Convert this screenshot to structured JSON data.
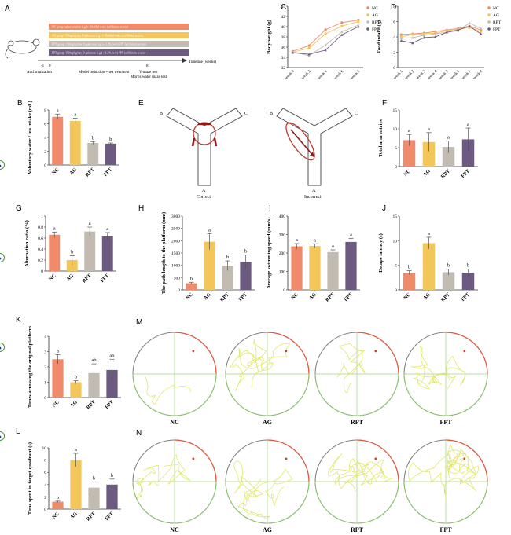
{
  "colors": {
    "NC": "#ef8a6b",
    "AG": "#f2c65a",
    "RPT": "#c2bbb1",
    "FPT": "#6d5a80",
    "text": "#222222",
    "track": "#dfe86a",
    "pool": "#7b7b7b",
    "platform": "#3a8f3a",
    "quadrantMark": "#d9342b"
  },
  "groups": [
    "NC",
    "AG",
    "RPT",
    "FPT"
  ],
  "panelA": {
    "letter": "A",
    "bars": [
      {
        "text": "NC group: saline solution (i.g.)+ Distilled water (ad libitum access)",
        "color": "#ef8a6b"
      },
      {
        "text": "AG group: 150mg/kg/day D-galactose (i.g.) + Distilled water (ad libitum access)",
        "color": "#f2c65a"
      },
      {
        "text": "RPT group: 150mg/kg/day D-galactose (i.g.) + 1.3% (w/v) RPT (ad libitum access)",
        "color": "#c2bbb1"
      },
      {
        "text": "FPT group: 150mg/kg/day D-galactose (i.g.) + 1.3% (w/v) FPT (ad libitum access)",
        "color": "#6d5a80"
      }
    ],
    "timeline": "Timeline (weeks)",
    "ticks": [
      "-1",
      "0",
      "8"
    ],
    "phases": [
      "Acclimatization",
      "Model induction + tea treatment",
      "Y-maze test",
      "Morris water maze test"
    ]
  },
  "chart_data": [
    {
      "id": "C",
      "type": "line",
      "ylabel": "Body weight (g)",
      "categories": [
        "week 0",
        "week 2",
        "week 4",
        "week 6",
        "week 8"
      ],
      "ylim": [
        32,
        44
      ],
      "yticks": [
        32,
        34,
        36,
        38,
        40,
        42,
        44
      ],
      "series": [
        {
          "name": "NC",
          "values": [
            35.2,
            36.3,
            39.4,
            40.8,
            41.3
          ]
        },
        {
          "name": "AG",
          "values": [
            35.0,
            35.8,
            38.6,
            40.1,
            41.0
          ]
        },
        {
          "name": "RPT",
          "values": [
            35.1,
            34.3,
            36.4,
            39.0,
            40.3
          ]
        },
        {
          "name": "FPT",
          "values": [
            34.9,
            34.6,
            35.4,
            38.4,
            40.0
          ]
        }
      ]
    },
    {
      "id": "D",
      "type": "line",
      "ylabel": "Food intake (g)",
      "categories": [
        "week 1",
        "week 2",
        "week 3",
        "week 4",
        "week 5",
        "week 6",
        "week 7",
        "week 8"
      ],
      "ylim": [
        0,
        8
      ],
      "yticks": [
        0,
        2,
        4,
        6,
        8
      ],
      "series": [
        {
          "name": "NC",
          "values": [
            4.3,
            4.4,
            4.5,
            4.7,
            4.9,
            5.1,
            5.4,
            4.9
          ]
        },
        {
          "name": "AG",
          "values": [
            4.0,
            4.3,
            4.4,
            4.5,
            4.8,
            5.0,
            5.2,
            4.7
          ]
        },
        {
          "name": "RPT",
          "values": [
            3.8,
            3.9,
            4.2,
            4.4,
            4.6,
            4.8,
            5.8,
            5.1
          ]
        },
        {
          "name": "FPT",
          "values": [
            3.5,
            3.2,
            3.9,
            4.0,
            4.6,
            4.9,
            5.4,
            4.4
          ]
        }
      ]
    },
    {
      "id": "B",
      "type": "bar",
      "ylabel": "Voluntary water / tea intake (mL)",
      "categories": [
        "NC",
        "AG",
        "RPT",
        "FPT"
      ],
      "ylim": [
        0,
        8
      ],
      "yticks": [
        0,
        2,
        4,
        6,
        8
      ],
      "values": [
        7.0,
        6.4,
        3.2,
        3.1
      ],
      "errors": [
        0.4,
        0.4,
        0.2,
        0.1
      ],
      "letters": [
        "a",
        "a",
        "b",
        "b"
      ]
    },
    {
      "id": "F",
      "type": "bar",
      "ylabel": "Total arm entries",
      "categories": [
        "NC",
        "AG",
        "RPT",
        "FPT"
      ],
      "ylim": [
        0,
        15
      ],
      "yticks": [
        0,
        5,
        10,
        15
      ],
      "values": [
        7.0,
        6.5,
        5.2,
        7.2
      ],
      "errors": [
        1.5,
        2.5,
        1.6,
        3.0
      ],
      "letters": [
        "a",
        "a",
        "a",
        "a"
      ]
    },
    {
      "id": "G",
      "type": "bar",
      "ylabel": "Alternation ratio (%)",
      "categories": [
        "NC",
        "AG",
        "RPT",
        "FPT"
      ],
      "ylim": [
        0,
        1.0
      ],
      "yticks": [
        0.0,
        0.2,
        0.4,
        0.6,
        0.8,
        1.0
      ],
      "values": [
        0.66,
        0.2,
        0.72,
        0.63
      ],
      "errors": [
        0.05,
        0.08,
        0.08,
        0.07
      ],
      "letters": [
        "a",
        "b",
        "a",
        "a"
      ]
    },
    {
      "id": "H",
      "type": "bar",
      "ylabel": "The path length to the platform (mm)",
      "categories": [
        "NC",
        "AG",
        "RPT",
        "FPT"
      ],
      "ylim": [
        0,
        3000
      ],
      "yticks": [
        0,
        500,
        1000,
        1500,
        2000,
        2500,
        3000
      ],
      "values": [
        270,
        1960,
        980,
        1140
      ],
      "errors": [
        40,
        320,
        200,
        280
      ],
      "letters": [
        "b",
        "a",
        "b",
        "b"
      ]
    },
    {
      "id": "I",
      "type": "bar",
      "ylabel": "Average swimming speed (mm/s)",
      "categories": [
        "NC",
        "AG",
        "RPT",
        "FPT"
      ],
      "ylim": [
        0,
        400
      ],
      "yticks": [
        0,
        100,
        200,
        300,
        400
      ],
      "values": [
        236,
        238,
        205,
        260
      ],
      "errors": [
        15,
        12,
        12,
        18
      ],
      "letters": [
        "a",
        "a",
        "a",
        "a"
      ]
    },
    {
      "id": "J",
      "type": "bar",
      "ylabel": "Escape latency (s)",
      "categories": [
        "NC",
        "AG",
        "RPT",
        "FPT"
      ],
      "ylim": [
        0,
        15
      ],
      "yticks": [
        0,
        5,
        10,
        15
      ],
      "values": [
        3.5,
        9.5,
        3.6,
        3.5
      ],
      "errors": [
        0.4,
        1.2,
        0.6,
        0.7
      ],
      "letters": [
        "b",
        "a",
        "b",
        "b"
      ]
    },
    {
      "id": "K",
      "type": "bar",
      "ylabel": "Times arrossing the original platform",
      "categories": [
        "NC",
        "AG",
        "RPT",
        "FPT"
      ],
      "ylim": [
        0,
        4
      ],
      "yticks": [
        0,
        1,
        2,
        3,
        4
      ],
      "values": [
        2.5,
        1.0,
        1.6,
        1.8
      ],
      "errors": [
        0.3,
        0.1,
        0.6,
        0.7
      ],
      "letters": [
        "a",
        "b",
        "ab",
        "ab"
      ]
    },
    {
      "id": "L",
      "type": "bar",
      "ylabel": "Time spent in target quadrant (s)",
      "categories": [
        "NC",
        "AG",
        "RPT",
        "FPT"
      ],
      "ylim": [
        0,
        10
      ],
      "yticks": [
        0,
        2,
        4,
        6,
        8,
        10
      ],
      "values": [
        1.2,
        8.0,
        3.5,
        4.0
      ],
      "errors": [
        0.1,
        1.1,
        0.9,
        0.9
      ],
      "letters": [
        "b",
        "a",
        "b",
        "b"
      ]
    }
  ],
  "panelE": {
    "letter": "E",
    "armB": "B",
    "armC": "C",
    "armA": "A",
    "correct": "Correct",
    "incorrect": "Incorrect"
  },
  "panelM": {
    "letter": "M",
    "labels": [
      "NC",
      "AG",
      "RPT",
      "FPT"
    ]
  },
  "panelN": {
    "letter": "N",
    "labels": [
      "NC",
      "AG",
      "RPT",
      "FPT"
    ]
  }
}
